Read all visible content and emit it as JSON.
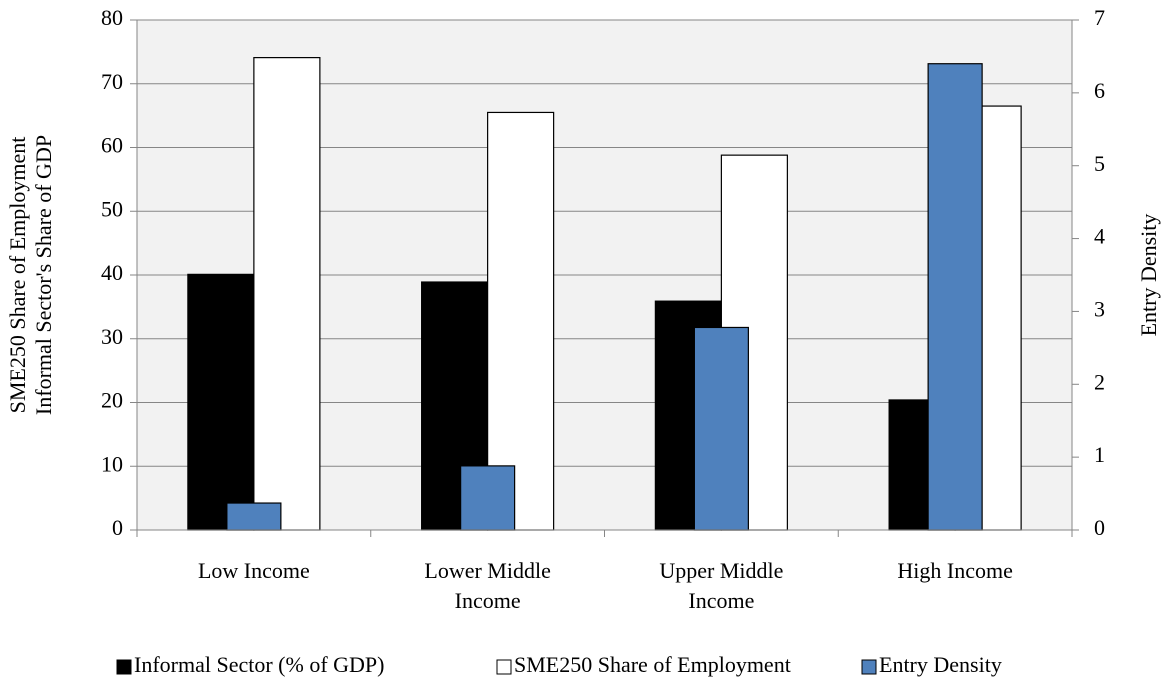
{
  "chart_data": {
    "type": "bar",
    "categories": [
      "Low Income",
      "Lower Middle Income",
      "Upper Middle Income",
      "High Income"
    ],
    "series": [
      {
        "name": "Informal Sector (% of GDP)",
        "color": "#000000",
        "values": [
          40.1,
          38.9,
          35.9,
          20.4
        ]
      },
      {
        "name": "SME250 Share of Employment",
        "color": "#ffffff",
        "values": [
          74.1,
          65.5,
          58.8,
          66.5
        ]
      },
      {
        "name": "Entry Density",
        "color": "#4f81bd",
        "axis": "y2",
        "values": [
          0.37,
          0.88,
          2.78,
          6.4
        ]
      }
    ],
    "ylabel": [
      "SME250 Share of Employment",
      "Informal Sector's Share of GDP"
    ],
    "y2label": "Entry Density",
    "ylim": [
      0,
      80
    ],
    "yticks": [
      0,
      10,
      20,
      30,
      40,
      50,
      60,
      70,
      80
    ],
    "y2lim": [
      0,
      7
    ],
    "y2ticks": [
      0,
      1,
      2,
      3,
      4,
      5,
      6,
      7
    ],
    "grid": true,
    "legend": "bottom"
  }
}
